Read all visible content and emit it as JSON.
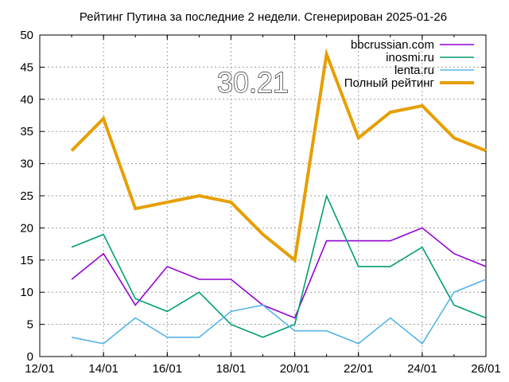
{
  "chart_data": {
    "type": "line",
    "title": "Рейтинг Путина за последние 2 недели. Сгенерирован 2025-01-26",
    "xlabel": "",
    "ylabel": "",
    "grid": true,
    "legend_position": "top-right",
    "ylim": [
      0,
      50
    ],
    "yticks": [
      0,
      5,
      10,
      15,
      20,
      25,
      30,
      35,
      40,
      45,
      50
    ],
    "xlim": [
      "2025-01-12",
      "2025-01-26"
    ],
    "xticks": [
      {
        "date": "2025-01-12",
        "label": "12/01"
      },
      {
        "date": "2025-01-14",
        "label": "14/01"
      },
      {
        "date": "2025-01-16",
        "label": "16/01"
      },
      {
        "date": "2025-01-18",
        "label": "18/01"
      },
      {
        "date": "2025-01-20",
        "label": "20/01"
      },
      {
        "date": "2025-01-22",
        "label": "22/01"
      },
      {
        "date": "2025-01-24",
        "label": "24/01"
      },
      {
        "date": "2025-01-26",
        "label": "26/01"
      }
    ],
    "x": [
      "2025-01-13",
      "2025-01-14",
      "2025-01-15",
      "2025-01-16",
      "2025-01-17",
      "2025-01-18",
      "2025-01-19",
      "2025-01-20",
      "2025-01-21",
      "2025-01-22",
      "2025-01-23",
      "2025-01-24",
      "2025-01-25",
      "2025-01-26"
    ],
    "series": [
      {
        "name": "bbcrussian.com",
        "color": "#9400d3",
        "values": [
          12,
          16,
          8,
          14,
          12,
          12,
          8,
          6,
          18,
          18,
          18,
          20,
          16,
          14
        ]
      },
      {
        "name": "inosmi.ru",
        "color": "#009e73",
        "values": [
          17,
          19,
          9,
          7,
          10,
          5,
          3,
          5,
          25,
          14,
          14,
          17,
          8,
          6
        ]
      },
      {
        "name": "lenta.ru",
        "color": "#56b4e9",
        "values": [
          3,
          2,
          6,
          3,
          3,
          7,
          8,
          4,
          4,
          2,
          6,
          2,
          10,
          12
        ]
      },
      {
        "name": "Полный рейтинг",
        "color": "#e69f00",
        "values": [
          32,
          37,
          23,
          24,
          25,
          24,
          19,
          15,
          47,
          34,
          38,
          39,
          34,
          32
        ]
      }
    ],
    "annotation": "30.21"
  }
}
